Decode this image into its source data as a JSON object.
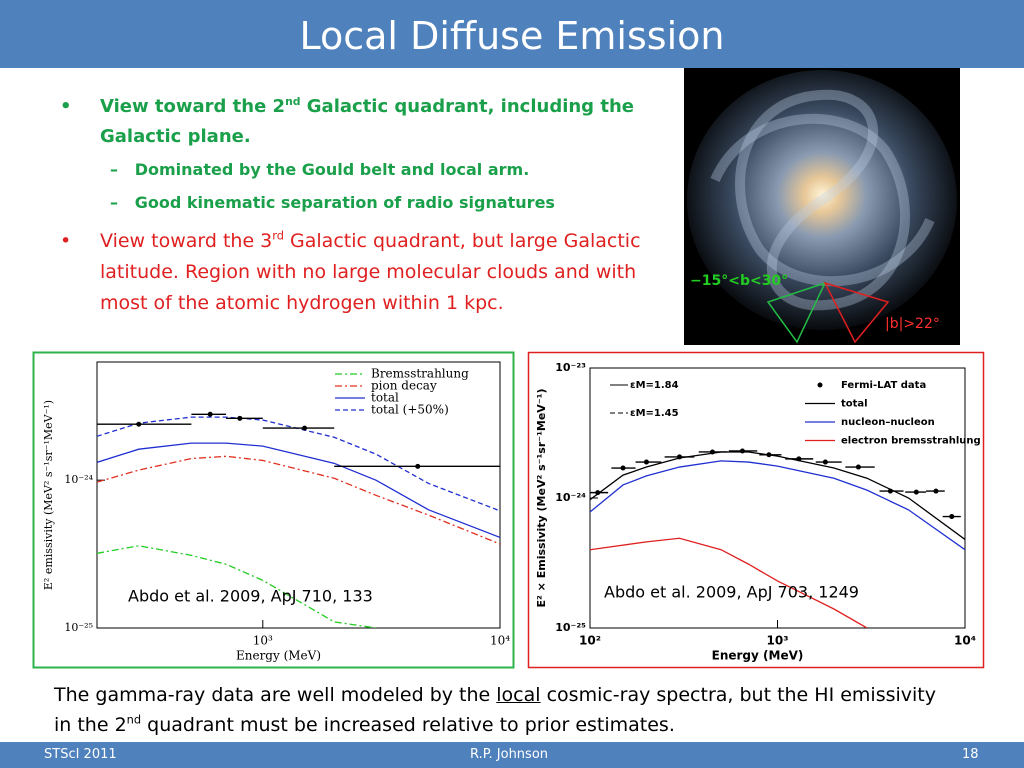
{
  "title": "Local Diffuse Emission",
  "bullets": [
    {
      "pre": "View toward the 2",
      "sup": "nd",
      "post": " Galactic quadrant, including the Galactic plane.",
      "subs": [
        "Dominated by the Gould belt and local arm.",
        "Good kinematic separation of radio signatures"
      ]
    },
    {
      "pre": "View toward the 3",
      "sup": "rd",
      "post": " Galactic quadrant, but large Galactic latitude.  Region with no large molecular clouds and with most of the atomic hydrogen within 1 kpc."
    }
  ],
  "image_labels": [
    "−15°<b<30°",
    "|b|>22°"
  ],
  "chart_data": [
    {
      "type": "line",
      "xlog": true,
      "ylog": true,
      "xlabel": "Energy (MeV)",
      "ylabel": "E² emissivity (MeV² s⁻¹sr⁻¹MeV⁻¹)",
      "annotation": "Abdo et al. 2009, ApJ 710, 133",
      "xlim": [
        200,
        10000
      ],
      "ylim": [
        1e-25,
        6.3e-24
      ],
      "xticks": [
        {
          "value": 1000,
          "label": "10³"
        },
        {
          "value": 10000,
          "label": "10⁴"
        }
      ],
      "yticks": [
        {
          "value": 1e-25,
          "label": "10⁻²⁵"
        },
        {
          "value": 1e-24,
          "label": "10⁻²⁴"
        }
      ],
      "legend": "upper right",
      "series": [
        {
          "name": "Bremsstrahlung",
          "color": "#22cc22",
          "style": "dashdot",
          "x": [
            200,
            300,
            500,
            700,
            1000,
            2000,
            3000
          ],
          "values": [
            3.2e-25,
            3.6e-25,
            3.1e-25,
            2.7e-25,
            2.1e-25,
            1.1e-25,
            1e-25
          ]
        },
        {
          "name": "pion decay",
          "color": "#e03020",
          "style": "dashdot",
          "x": [
            200,
            300,
            500,
            700,
            1000,
            2000,
            3000,
            5000,
            10000
          ],
          "values": [
            9.7e-25,
            1.17e-24,
            1.4e-24,
            1.45e-24,
            1.36e-24,
            1.03e-24,
            7.9e-25,
            5.8e-25,
            3.7e-25
          ]
        },
        {
          "name": "total",
          "color": "#2030d0",
          "style": "solid",
          "x": [
            200,
            300,
            500,
            700,
            1000,
            2000,
            3000,
            5000,
            10000
          ],
          "values": [
            1.32e-24,
            1.62e-24,
            1.78e-24,
            1.78e-24,
            1.7e-24,
            1.3e-24,
            1e-24,
            6.3e-25,
            4.1e-25
          ]
        },
        {
          "name": "total (+50%)",
          "color": "#2030d0",
          "style": "dashed",
          "x": [
            200,
            300,
            500,
            700,
            1000,
            2000,
            3000,
            5000,
            10000
          ],
          "values": [
            1.98e-24,
            2.43e-24,
            2.67e-24,
            2.67e-24,
            2.55e-24,
            1.95e-24,
            1.5e-24,
            9.5e-25,
            6.2e-25
          ]
        }
      ],
      "data": {
        "color": "#000000",
        "x": [
          300,
          600,
          800,
          1500,
          4500
        ],
        "x_low": [
          200,
          500,
          700,
          1000,
          2000
        ],
        "x_high": [
          500,
          700,
          1000,
          2000,
          10000
        ],
        "values": [
          2.39e-24,
          2.79e-24,
          2.62e-24,
          2.25e-24,
          1.24e-24
        ]
      }
    },
    {
      "type": "line",
      "xlog": true,
      "ylog": true,
      "xlabel": "Energy (MeV)",
      "ylabel": "E² × Emissivity (MeV² s⁻¹sr⁻¹MeV⁻¹)",
      "annotation": "Abdo et al. 2009, ApJ 703, 1249",
      "xlim": [
        100,
        10000
      ],
      "ylim": [
        1e-25,
        1e-23
      ],
      "xticks": [
        {
          "value": 100,
          "label": "10²"
        },
        {
          "value": 1000,
          "label": "10³"
        },
        {
          "value": 10000,
          "label": "10⁴"
        }
      ],
      "yticks": [
        {
          "value": 1e-25,
          "label": "10⁻²⁵"
        },
        {
          "value": 1e-24,
          "label": "10⁻²⁴"
        },
        {
          "value": 1e-23,
          "label": "10⁻²³"
        }
      ],
      "legend": "upper right",
      "curve_labels": [
        {
          "text": "εM=1.84",
          "style": "solid"
        },
        {
          "text": "εM=1.45",
          "style": "dashed"
        }
      ],
      "series": [
        {
          "name": "total",
          "color": "#000000",
          "style": "solid",
          "x": [
            100,
            150,
            200,
            300,
            500,
            700,
            1000,
            2000,
            3000,
            5000,
            10000
          ],
          "values": [
            9.7e-25,
            1.5e-24,
            1.73e-24,
            2.03e-24,
            2.26e-24,
            2.26e-24,
            2.1e-24,
            1.7e-24,
            1.42e-24,
            1e-24,
            4.8e-25
          ]
        },
        {
          "name": "nucleon–nucleon",
          "color": "#2030d0",
          "style": "solid",
          "x": [
            100,
            150,
            200,
            300,
            500,
            700,
            1000,
            2000,
            3000,
            5000,
            10000
          ],
          "values": [
            7.8e-25,
            1.26e-24,
            1.48e-24,
            1.73e-24,
            1.93e-24,
            1.89e-24,
            1.76e-24,
            1.42e-24,
            1.15e-24,
            8.1e-25,
            4e-25
          ]
        },
        {
          "name": "electron bremsstrahlung",
          "color": "#e02020",
          "style": "solid",
          "x": [
            100,
            200,
            300,
            500,
            700,
            1000,
            2000,
            3000
          ],
          "values": [
            4e-25,
            4.6e-25,
            4.9e-25,
            4e-25,
            3.1e-25,
            2.3e-25,
            1.4e-25,
            1e-25
          ]
        }
      ],
      "data": {
        "name": "Fermi-LAT data",
        "color": "#000000",
        "x": [
          110,
          150,
          200,
          300,
          450,
          650,
          900,
          1300,
          1800,
          2700,
          4000,
          5500,
          7000,
          8500
        ],
        "x_low": [
          100,
          130,
          175,
          250,
          380,
          550,
          800,
          1100,
          1600,
          2300,
          3500,
          4800,
          6200,
          7600
        ],
        "x_high": [
          125,
          175,
          240,
          360,
          540,
          780,
          1050,
          1550,
          2200,
          3300,
          4700,
          6200,
          7800,
          9500
        ],
        "values": [
          1.1e-24,
          1.7e-24,
          1.89e-24,
          2.07e-24,
          2.26e-24,
          2.3e-24,
          2.15e-24,
          2e-24,
          1.89e-24,
          1.73e-24,
          1.13e-24,
          1.11e-24,
          1.13e-24,
          7.2e-25
        ]
      }
    }
  ],
  "caption": {
    "pre": "The gamma-ray data are well modeled by the ",
    "underline": "local",
    "mid": " cosmic-ray spectra, but the HI emissivity in the 2",
    "sup": "nd",
    "post": " quadrant must be increased relative to prior estimates."
  },
  "footer": {
    "left": "STScI 2011",
    "center": "R.P. Johnson",
    "right": "18"
  }
}
